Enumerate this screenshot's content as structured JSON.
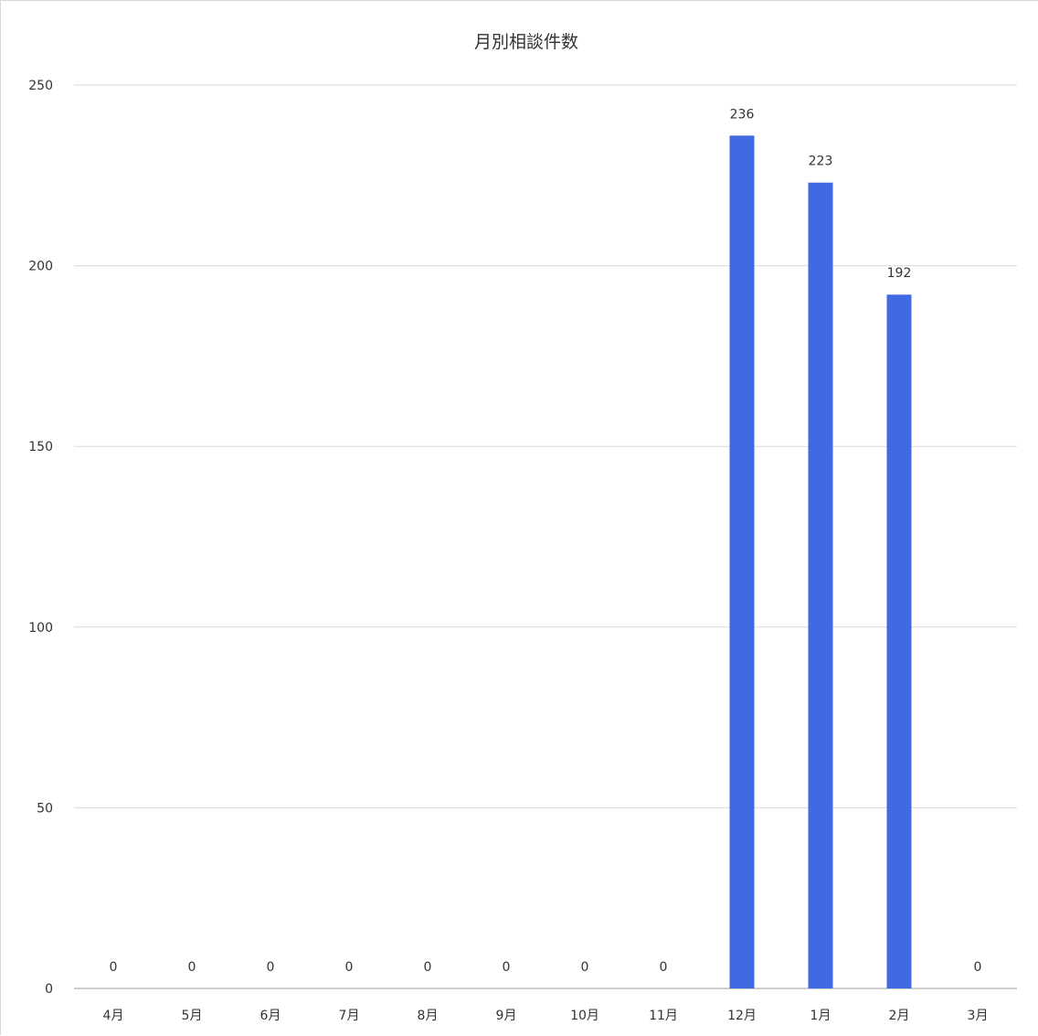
{
  "chart_data": {
    "type": "bar",
    "title": "月別相談件数",
    "xlabel": "",
    "ylabel": "",
    "categories": [
      "4月",
      "5月",
      "6月",
      "7月",
      "8月",
      "9月",
      "10月",
      "11月",
      "12月",
      "1月",
      "2月",
      "3月"
    ],
    "values": [
      0,
      0,
      0,
      0,
      0,
      0,
      0,
      0,
      236,
      223,
      192,
      0
    ],
    "data_labels": [
      "0",
      "0",
      "0",
      "0",
      "0",
      "0",
      "0",
      "0",
      "236",
      "223",
      "192",
      "0"
    ],
    "ylim": [
      0,
      250
    ],
    "yticks": [
      "0",
      "50",
      "100",
      "150",
      "200",
      "250"
    ],
    "grid": true,
    "legend": "none",
    "colors": {
      "bar": "#4169e1",
      "grid": "#d9d9d9",
      "text": "#333333"
    }
  }
}
